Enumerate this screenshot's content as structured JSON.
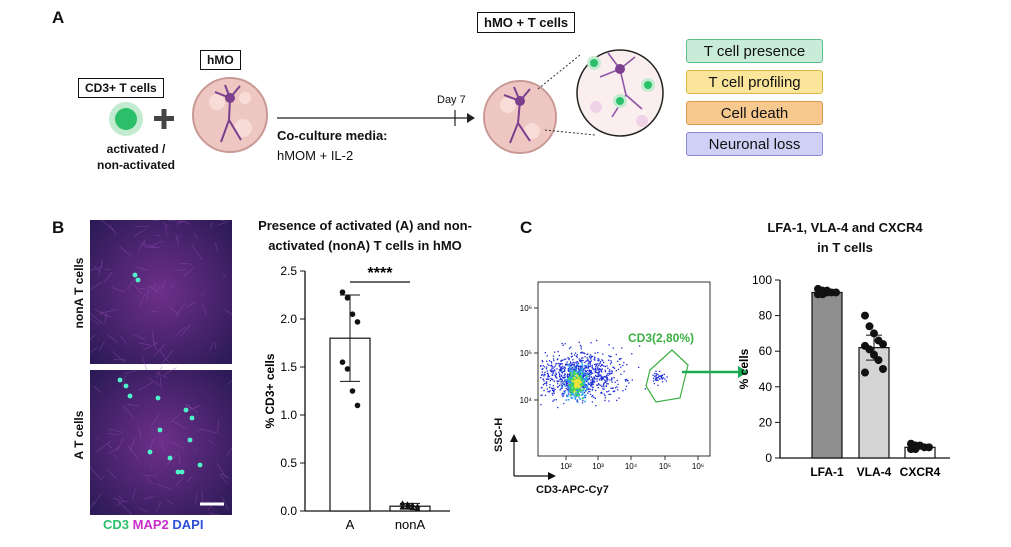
{
  "panel_a": {
    "letter": "A",
    "tcells_label": "CD3+ T cells",
    "tcells_state": [
      "activated /",
      "non-activated"
    ],
    "hmo_label": "hMO",
    "coculture_label": "Co-culture media:",
    "media": "hMOM + IL-2",
    "day": "Day 7",
    "result_label": "hMO + T cells",
    "readouts": [
      {
        "label": "T cell presence",
        "color": "#c8ecd8",
        "border": "#5bbf87"
      },
      {
        "label": "T cell profiling",
        "color": "#fbe59a",
        "border": "#d8b840"
      },
      {
        "label": "Cell death",
        "color": "#f8c98e",
        "border": "#d99a50"
      },
      {
        "label": "Neuronal loss",
        "color": "#cfd0f5",
        "border": "#8a8ad6"
      }
    ]
  },
  "panel_b": {
    "letter": "B",
    "img_top_label": "nonA T cells",
    "img_bottom_label": "A T cells",
    "stain_cd3": "CD3",
    "stain_map2": "MAP2",
    "stain_dapi": "DAPI",
    "stain_colors": {
      "cd3": "#2bbf6a",
      "map2": "#c92ec9",
      "dapi": "#2e4fd6"
    },
    "img_colors": {
      "base": "#3a1f5c",
      "accent": "#6e2f8a",
      "dot": "#4ef5c8"
    }
  },
  "chart_b": {
    "type": "bar",
    "title": "Presence of activated (A) and non-activated (nonA) T cells in hMO",
    "title_lines": [
      "Presence of activated (A) and non-",
      "activated (nonA) T cells in hMO"
    ],
    "categories": [
      "A",
      "nonA"
    ],
    "values": [
      1.8,
      0.05
    ],
    "sd": [
      0.45,
      0.03
    ],
    "points": [
      [
        2.28,
        2.22,
        2.05,
        1.97,
        1.55,
        1.48,
        1.25,
        1.1
      ],
      [
        0.08,
        0.07,
        0.06,
        0.05,
        0.04,
        0.04,
        0.03,
        0.02
      ]
    ],
    "ylabel": "% CD3+ cells",
    "ylim": [
      0,
      2.5
    ],
    "yticks": [
      "0.0",
      "0.5",
      "1.0",
      "1.5",
      "2.0",
      "2.5"
    ],
    "significance": "****"
  },
  "panel_c": {
    "letter": "C",
    "gate_label": "CD3(2,80%)",
    "xlabel": "CD3-APC-Cy7",
    "ylabel": "SSC-H",
    "xticks": [
      "10²",
      "10³",
      "10⁴",
      "10⁵",
      "10⁶"
    ],
    "yticks": [
      "10⁴",
      "10⁵",
      "10⁶"
    ],
    "gate_color": "#3cb043",
    "scatter_colors": [
      "#1c2bd8",
      "#2a9df0",
      "#3ed65a",
      "#f1e43a"
    ]
  },
  "chart_data": {
    "type": "bar",
    "title": "LFA-1, VLA-4 and CXCR4 in T cells",
    "title_lines": [
      "LFA-1, VLA-4 and CXCR4",
      "in T cells"
    ],
    "categories": [
      "LFA-1",
      "VLA-4",
      "CXCR4"
    ],
    "values": [
      93,
      62,
      6
    ],
    "sd": [
      1,
      7,
      1
    ],
    "bar_colors": [
      "#8e8e8e",
      "#d4d4d4",
      "#ffffff"
    ],
    "points": [
      [
        95,
        94,
        94,
        93,
        93,
        92,
        92,
        93
      ],
      [
        80,
        74,
        70,
        66,
        64,
        63,
        61,
        58,
        55,
        50,
        48
      ],
      [
        8,
        7,
        7,
        6,
        6,
        5,
        5
      ]
    ],
    "ylabel": "% cells",
    "ylim": [
      0,
      100
    ],
    "yticks": [
      "0",
      "20",
      "40",
      "60",
      "80",
      "100"
    ]
  }
}
